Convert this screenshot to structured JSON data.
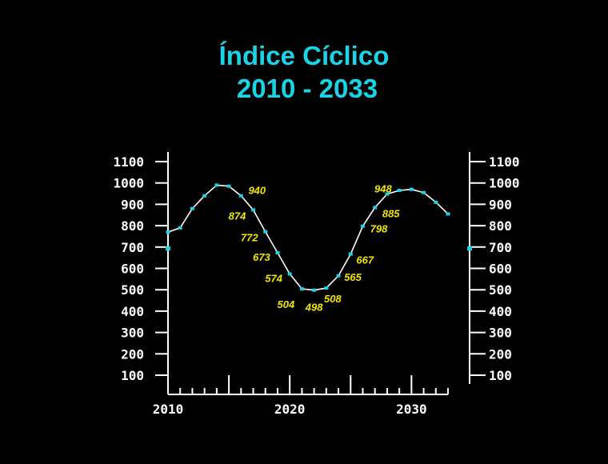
{
  "chart_data": {
    "type": "line",
    "title_line1": "Índice Cíclico",
    "title_line2": "2010 - 2033",
    "xlabel": "",
    "ylabel": "",
    "xlim": [
      2010,
      2033
    ],
    "ylim": [
      100,
      1100
    ],
    "y_ticks": [
      "1100",
      "1000",
      "900",
      "800",
      "700",
      "600",
      "500",
      "400",
      "300",
      "200",
      "100"
    ],
    "x_tick_labels": [
      "2010",
      "2020",
      "2030"
    ],
    "grid": false,
    "series": [
      {
        "x": [
          2010,
          2011,
          2012,
          2013,
          2014,
          2015,
          2016,
          2017,
          2018,
          2019,
          2020,
          2021,
          2022,
          2023,
          2024,
          2025,
          2026,
          2027,
          2028,
          2029,
          2030,
          2031,
          2032,
          2033
        ],
        "values": [
          770,
          790,
          880,
          940,
          990,
          985,
          940,
          874,
          772,
          673,
          574,
          504,
          498,
          508,
          565,
          667,
          798,
          885,
          948,
          965,
          970,
          955,
          910,
          855
        ]
      }
    ],
    "annotations": [
      {
        "text": "940",
        "x": 2016
      },
      {
        "text": "874",
        "x": 2017
      },
      {
        "text": "772",
        "x": 2018
      },
      {
        "text": "673",
        "x": 2019
      },
      {
        "text": "574",
        "x": 2020
      },
      {
        "text": "504",
        "x": 2021
      },
      {
        "text": "498",
        "x": 2022
      },
      {
        "text": "508",
        "x": 2023
      },
      {
        "text": "565",
        "x": 2024
      },
      {
        "text": "667",
        "x": 2025
      },
      {
        "text": "798",
        "x": 2026
      },
      {
        "text": "885",
        "x": 2027
      },
      {
        "text": "948",
        "x": 2028
      }
    ]
  },
  "colors": {
    "title": "#19d3e6",
    "axis": "#ffffff",
    "points": "#19d3e6",
    "labels": "#f2e600",
    "background": "#000000"
  }
}
